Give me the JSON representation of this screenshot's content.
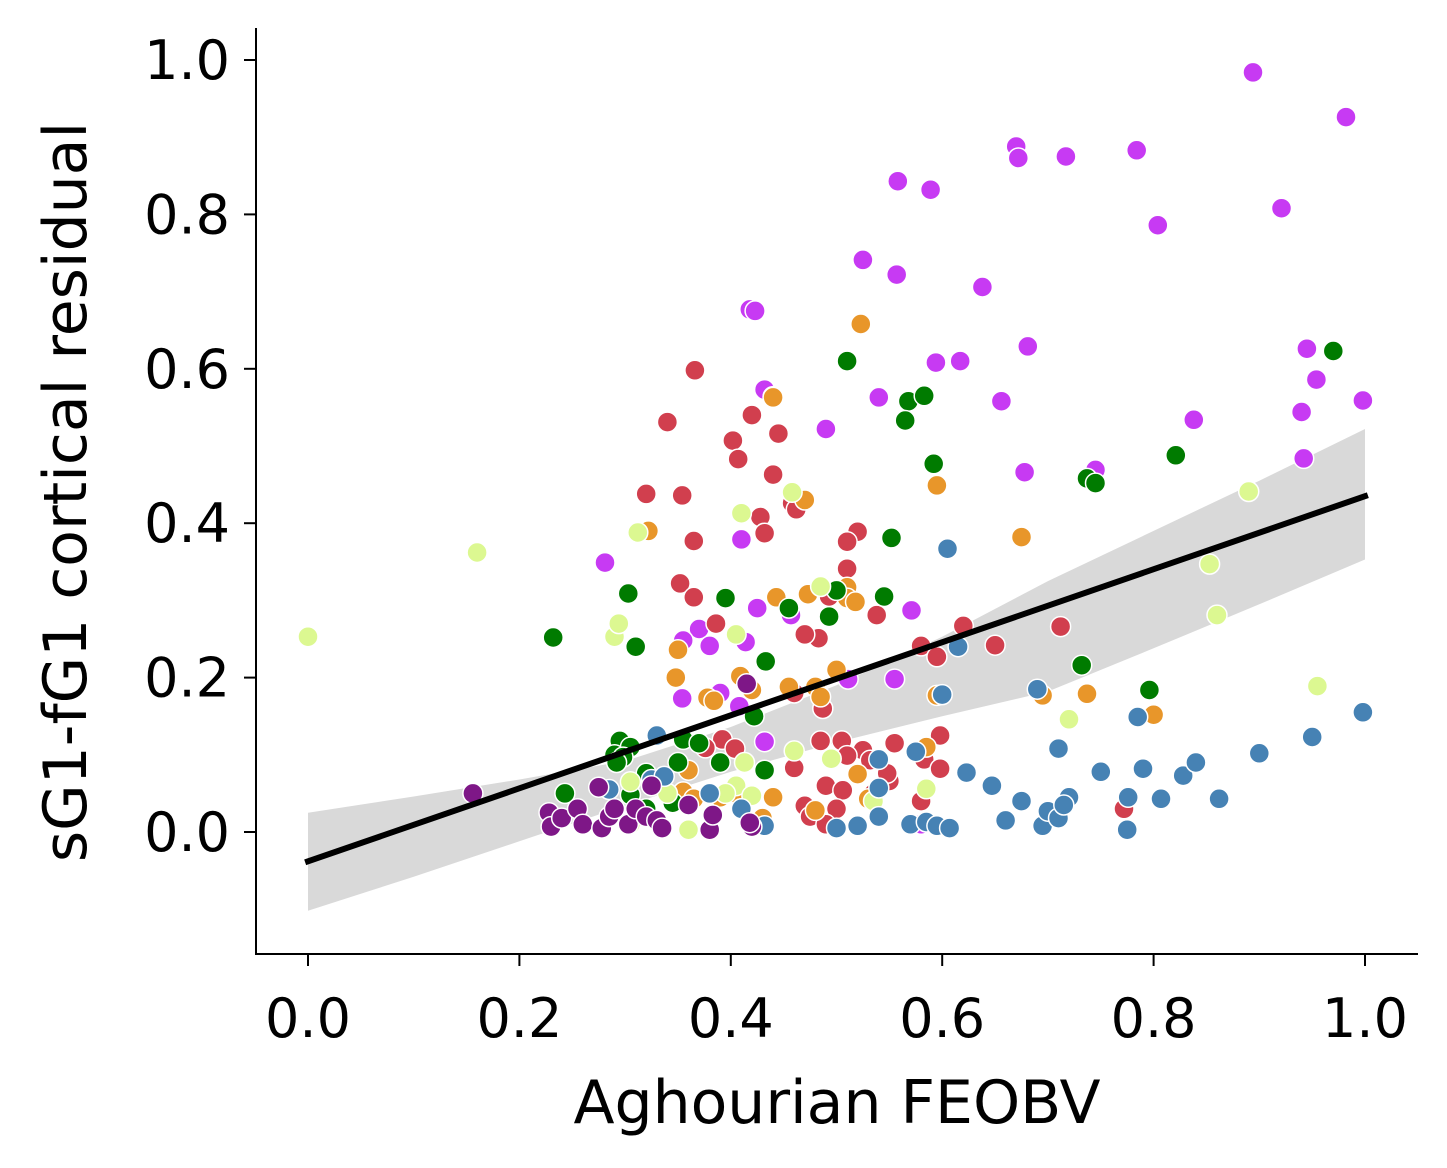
{
  "chart_data": {
    "type": "scatter",
    "title": "",
    "xlabel": "Aghourian FEOBV",
    "ylabel": "sG1-fG1 cortical residual",
    "xlim": [
      -0.05,
      1.05
    ],
    "ylim": [
      -0.155,
      1.04
    ],
    "xticks": [
      0.0,
      0.2,
      0.4,
      0.6,
      0.8,
      1.0
    ],
    "yticks": [
      0.0,
      0.2,
      0.4,
      0.6,
      0.8,
      1.0
    ],
    "xtick_labels": [
      "0.0",
      "0.2",
      "0.4",
      "0.6",
      "0.8",
      "1.0"
    ],
    "ytick_labels": [
      "0.0",
      "0.2",
      "0.4",
      "0.6",
      "0.8",
      "1.0"
    ],
    "grid": false,
    "legend": "none",
    "regression": {
      "color": "#000000",
      "line": [
        [
          0.0,
          -0.038
        ],
        [
          1.0,
          0.435
        ]
      ],
      "ci_color": "#d9d9d9",
      "ci": {
        "x": [
          0.0,
          0.1,
          0.2,
          0.3,
          0.4,
          0.5,
          0.6,
          0.7,
          0.8,
          0.9,
          1.0
        ],
        "lower": [
          -0.102,
          -0.058,
          -0.012,
          0.034,
          0.078,
          0.116,
          0.15,
          0.182,
          0.238,
          0.295,
          0.353
        ],
        "upper": [
          0.025,
          0.046,
          0.068,
          0.092,
          0.136,
          0.19,
          0.253,
          0.325,
          0.39,
          0.455,
          0.522
        ]
      }
    },
    "series": [
      {
        "color": "#c73af3",
        "points": [
          [
            0.894,
            0.984
          ],
          [
            0.982,
            0.926
          ],
          [
            0.67,
            0.888
          ],
          [
            0.672,
            0.873
          ],
          [
            0.717,
            0.875
          ],
          [
            0.784,
            0.883
          ],
          [
            0.558,
            0.843
          ],
          [
            0.589,
            0.832
          ],
          [
            0.804,
            0.786
          ],
          [
            0.921,
            0.808
          ],
          [
            0.525,
            0.741
          ],
          [
            0.557,
            0.722
          ],
          [
            0.638,
            0.706
          ],
          [
            0.418,
            0.677
          ],
          [
            0.423,
            0.675
          ],
          [
            0.594,
            0.608
          ],
          [
            0.617,
            0.61
          ],
          [
            0.681,
            0.629
          ],
          [
            0.945,
            0.626
          ],
          [
            0.954,
            0.586
          ],
          [
            0.432,
            0.573
          ],
          [
            0.54,
            0.563
          ],
          [
            0.656,
            0.558
          ],
          [
            0.998,
            0.559
          ],
          [
            0.838,
            0.534
          ],
          [
            0.94,
            0.544
          ],
          [
            0.49,
            0.522
          ],
          [
            0.942,
            0.484
          ],
          [
            0.745,
            0.469
          ],
          [
            0.678,
            0.466
          ],
          [
            0.281,
            0.349
          ],
          [
            0.41,
            0.379
          ],
          [
            0.425,
            0.29
          ],
          [
            0.457,
            0.281
          ],
          [
            0.571,
            0.287
          ],
          [
            0.37,
            0.263
          ],
          [
            0.355,
            0.248
          ],
          [
            0.38,
            0.241
          ],
          [
            0.414,
            0.246
          ],
          [
            0.39,
            0.18
          ],
          [
            0.354,
            0.173
          ],
          [
            0.511,
            0.198
          ],
          [
            0.555,
            0.198
          ],
          [
            0.408,
            0.163
          ],
          [
            0.432,
            0.117
          ],
          [
            0.295,
            0.107
          ],
          [
            0.58,
            0.01
          ]
        ]
      },
      {
        "color": "#d13f4e",
        "points": [
          [
            0.366,
            0.598
          ],
          [
            0.34,
            0.531
          ],
          [
            0.42,
            0.54
          ],
          [
            0.402,
            0.507
          ],
          [
            0.44,
            0.564
          ],
          [
            0.445,
            0.516
          ],
          [
            0.407,
            0.483
          ],
          [
            0.44,
            0.463
          ],
          [
            0.32,
            0.438
          ],
          [
            0.354,
            0.436
          ],
          [
            0.458,
            0.426
          ],
          [
            0.462,
            0.418
          ],
          [
            0.428,
            0.408
          ],
          [
            0.432,
            0.387
          ],
          [
            0.365,
            0.377
          ],
          [
            0.52,
            0.389
          ],
          [
            0.51,
            0.376
          ],
          [
            0.51,
            0.341
          ],
          [
            0.352,
            0.322
          ],
          [
            0.365,
            0.304
          ],
          [
            0.386,
            0.27
          ],
          [
            0.493,
            0.305
          ],
          [
            0.538,
            0.281
          ],
          [
            0.483,
            0.251
          ],
          [
            0.58,
            0.241
          ],
          [
            0.62,
            0.267
          ],
          [
            0.65,
            0.242
          ],
          [
            0.712,
            0.266
          ],
          [
            0.595,
            0.227
          ],
          [
            0.47,
            0.256
          ],
          [
            0.46,
            0.18
          ],
          [
            0.487,
            0.16
          ],
          [
            0.392,
            0.12
          ],
          [
            0.404,
            0.108
          ],
          [
            0.376,
            0.109
          ],
          [
            0.46,
            0.083
          ],
          [
            0.485,
            0.118
          ],
          [
            0.505,
            0.118
          ],
          [
            0.525,
            0.106
          ],
          [
            0.555,
            0.115
          ],
          [
            0.575,
            0.103
          ],
          [
            0.598,
            0.125
          ],
          [
            0.583,
            0.094
          ],
          [
            0.51,
            0.099
          ],
          [
            0.49,
            0.06
          ],
          [
            0.506,
            0.054
          ],
          [
            0.55,
            0.066
          ],
          [
            0.598,
            0.082
          ],
          [
            0.58,
            0.04
          ],
          [
            0.47,
            0.034
          ],
          [
            0.475,
            0.02
          ],
          [
            0.5,
            0.03
          ],
          [
            0.49,
            0.01
          ],
          [
            0.535,
            0.05
          ],
          [
            0.772,
            0.03
          ],
          [
            0.548,
            0.076
          ],
          [
            0.532,
            0.093
          ]
        ]
      },
      {
        "color": "#e8962a",
        "points": [
          [
            0.523,
            0.658
          ],
          [
            0.44,
            0.563
          ],
          [
            0.595,
            0.449
          ],
          [
            0.47,
            0.43
          ],
          [
            0.675,
            0.382
          ],
          [
            0.322,
            0.39
          ],
          [
            0.443,
            0.304
          ],
          [
            0.473,
            0.308
          ],
          [
            0.51,
            0.317
          ],
          [
            0.51,
            0.303
          ],
          [
            0.518,
            0.298
          ],
          [
            0.35,
            0.236
          ],
          [
            0.348,
            0.2
          ],
          [
            0.409,
            0.202
          ],
          [
            0.378,
            0.174
          ],
          [
            0.384,
            0.17
          ],
          [
            0.42,
            0.184
          ],
          [
            0.455,
            0.188
          ],
          [
            0.48,
            0.188
          ],
          [
            0.485,
            0.175
          ],
          [
            0.5,
            0.21
          ],
          [
            0.595,
            0.177
          ],
          [
            0.695,
            0.177
          ],
          [
            0.737,
            0.179
          ],
          [
            0.8,
            0.152
          ],
          [
            0.36,
            0.08
          ],
          [
            0.355,
            0.052
          ],
          [
            0.365,
            0.043
          ],
          [
            0.39,
            0.045
          ],
          [
            0.405,
            0.05
          ],
          [
            0.41,
            0.03
          ],
          [
            0.44,
            0.045
          ],
          [
            0.43,
            0.018
          ],
          [
            0.48,
            0.028
          ],
          [
            0.585,
            0.11
          ],
          [
            0.52,
            0.075
          ],
          [
            0.53,
            0.043
          ]
        ]
      },
      {
        "color": "#007b00",
        "points": [
          [
            0.97,
            0.623
          ],
          [
            0.51,
            0.61
          ],
          [
            0.568,
            0.558
          ],
          [
            0.583,
            0.565
          ],
          [
            0.565,
            0.533
          ],
          [
            0.592,
            0.477
          ],
          [
            0.821,
            0.488
          ],
          [
            0.737,
            0.458
          ],
          [
            0.745,
            0.452
          ],
          [
            0.552,
            0.381
          ],
          [
            0.303,
            0.309
          ],
          [
            0.232,
            0.252
          ],
          [
            0.31,
            0.24
          ],
          [
            0.395,
            0.303
          ],
          [
            0.455,
            0.29
          ],
          [
            0.493,
            0.279
          ],
          [
            0.5,
            0.313
          ],
          [
            0.545,
            0.305
          ],
          [
            0.433,
            0.221
          ],
          [
            0.732,
            0.216
          ],
          [
            0.796,
            0.184
          ],
          [
            0.422,
            0.15
          ],
          [
            0.355,
            0.12
          ],
          [
            0.37,
            0.115
          ],
          [
            0.295,
            0.118
          ],
          [
            0.305,
            0.11
          ],
          [
            0.29,
            0.1
          ],
          [
            0.298,
            0.097
          ],
          [
            0.292,
            0.09
          ],
          [
            0.32,
            0.076
          ],
          [
            0.35,
            0.09
          ],
          [
            0.39,
            0.09
          ],
          [
            0.432,
            0.08
          ],
          [
            0.243,
            0.05
          ],
          [
            0.305,
            0.048
          ],
          [
            0.345,
            0.038
          ],
          [
            0.32,
            0.03
          ]
        ]
      },
      {
        "color": "#dcf891",
        "points": [
          [
            0.0,
            0.253
          ],
          [
            0.16,
            0.362
          ],
          [
            0.312,
            0.388
          ],
          [
            0.41,
            0.413
          ],
          [
            0.458,
            0.44
          ],
          [
            0.29,
            0.253
          ],
          [
            0.294,
            0.27
          ],
          [
            0.405,
            0.256
          ],
          [
            0.485,
            0.318
          ],
          [
            0.89,
            0.441
          ],
          [
            0.853,
            0.347
          ],
          [
            0.86,
            0.281
          ],
          [
            0.955,
            0.189
          ],
          [
            0.72,
            0.146
          ],
          [
            0.46,
            0.105
          ],
          [
            0.495,
            0.095
          ],
          [
            0.413,
            0.09
          ],
          [
            0.405,
            0.06
          ],
          [
            0.395,
            0.05
          ],
          [
            0.42,
            0.047
          ],
          [
            0.535,
            0.04
          ],
          [
            0.585,
            0.056
          ],
          [
            0.305,
            0.01
          ],
          [
            0.36,
            0.003
          ],
          [
            0.305,
            0.065
          ],
          [
            0.34,
            0.05
          ]
        ]
      },
      {
        "color": "#4682b4",
        "points": [
          [
            0.605,
            0.367
          ],
          [
            0.615,
            0.24
          ],
          [
            0.6,
            0.178
          ],
          [
            0.69,
            0.185
          ],
          [
            0.33,
            0.125
          ],
          [
            0.71,
            0.108
          ],
          [
            0.75,
            0.078
          ],
          [
            0.785,
            0.149
          ],
          [
            0.79,
            0.082
          ],
          [
            0.54,
            0.094
          ],
          [
            0.575,
            0.104
          ],
          [
            0.623,
            0.077
          ],
          [
            0.647,
            0.06
          ],
          [
            0.675,
            0.04
          ],
          [
            0.72,
            0.045
          ],
          [
            0.776,
            0.045
          ],
          [
            0.807,
            0.043
          ],
          [
            0.828,
            0.073
          ],
          [
            0.84,
            0.09
          ],
          [
            0.862,
            0.043
          ],
          [
            0.9,
            0.102
          ],
          [
            0.95,
            0.123
          ],
          [
            0.998,
            0.155
          ],
          [
            0.57,
            0.01
          ],
          [
            0.585,
            0.013
          ],
          [
            0.595,
            0.008
          ],
          [
            0.607,
            0.005
          ],
          [
            0.66,
            0.015
          ],
          [
            0.695,
            0.008
          ],
          [
            0.7,
            0.027
          ],
          [
            0.71,
            0.018
          ],
          [
            0.715,
            0.035
          ],
          [
            0.775,
            0.003
          ],
          [
            0.5,
            0.005
          ],
          [
            0.52,
            0.008
          ],
          [
            0.54,
            0.02
          ],
          [
            0.54,
            0.057
          ],
          [
            0.325,
            0.068
          ],
          [
            0.337,
            0.072
          ],
          [
            0.38,
            0.05
          ],
          [
            0.41,
            0.03
          ],
          [
            0.432,
            0.008
          ],
          [
            0.285,
            0.055
          ]
        ]
      },
      {
        "color": "#7e1787",
        "points": [
          [
            0.156,
            0.05
          ],
          [
            0.415,
            0.192
          ],
          [
            0.228,
            0.025
          ],
          [
            0.23,
            0.007
          ],
          [
            0.24,
            0.018
          ],
          [
            0.255,
            0.03
          ],
          [
            0.26,
            0.01
          ],
          [
            0.275,
            0.058
          ],
          [
            0.278,
            0.005
          ],
          [
            0.285,
            0.02
          ],
          [
            0.29,
            0.03
          ],
          [
            0.303,
            0.01
          ],
          [
            0.31,
            0.03
          ],
          [
            0.32,
            0.02
          ],
          [
            0.33,
            0.015
          ],
          [
            0.335,
            0.005
          ],
          [
            0.38,
            0.003
          ],
          [
            0.383,
            0.022
          ],
          [
            0.42,
            0.007
          ],
          [
            0.418,
            0.012
          ],
          [
            0.325,
            0.06
          ],
          [
            0.36,
            0.035
          ]
        ]
      }
    ]
  }
}
